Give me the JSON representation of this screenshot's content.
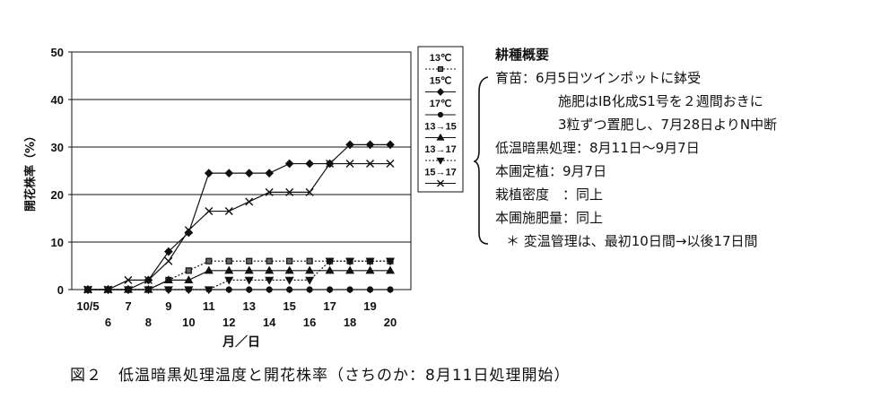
{
  "chart_data": {
    "type": "line",
    "ylabel": "開花株率（%）",
    "xlabel": "月／日",
    "ylim": [
      0,
      50
    ],
    "yticks": [
      0,
      10,
      20,
      30,
      40,
      50
    ],
    "grid": true,
    "legend_position": "right",
    "categories": [
      "10/5",
      "6",
      "7",
      "8",
      "9",
      "10",
      "11",
      "12",
      "13",
      "14",
      "15",
      "16",
      "17",
      "18",
      "19",
      "20"
    ],
    "series": [
      {
        "name": "13℃",
        "marker": "square",
        "dash": "2,2",
        "values": [
          0,
          0,
          0,
          0,
          2,
          4,
          6,
          6,
          6,
          6,
          6,
          6,
          6,
          6,
          6,
          6
        ]
      },
      {
        "name": "15℃",
        "marker": "diamond",
        "dash": "",
        "values": [
          0,
          0,
          0,
          2,
          8,
          12,
          24.5,
          24.5,
          24.5,
          24.5,
          26.5,
          26.5,
          26.5,
          30.5,
          30.5,
          30.5
        ]
      },
      {
        "name": "17℃",
        "marker": "circle",
        "dash": "",
        "values": [
          0,
          0,
          0,
          0,
          0,
          0,
          0,
          0,
          0,
          0,
          0,
          0,
          0,
          0,
          0,
          0
        ]
      },
      {
        "name": "13→15",
        "marker": "triangle",
        "dash": "",
        "values": [
          0,
          0,
          0,
          0,
          2,
          2,
          4,
          4,
          4,
          4,
          4,
          4,
          4,
          4,
          4,
          4
        ]
      },
      {
        "name": "13→17",
        "marker": "triangle-down",
        "dash": "2,2",
        "values": [
          0,
          0,
          0,
          0,
          0,
          0,
          0,
          2,
          2,
          2,
          2,
          2,
          6,
          6,
          6,
          6
        ]
      },
      {
        "name": "15→17",
        "marker": "x",
        "dash": "",
        "values": [
          0,
          0,
          2,
          2,
          6,
          12.5,
          16.5,
          16.5,
          18.5,
          20.5,
          20.5,
          20.5,
          26.5,
          26.5,
          26.5,
          26.5
        ]
      }
    ]
  },
  "notes": {
    "title": "耕種概要",
    "lines": [
      "育苗：6月5日ツインポットに鉢受",
      "施肥はIB化成S1号を２週間おきに",
      "3粒ずつ置肥し、7月28日よりN中断",
      "低温暗黒処理：8月11日～9月7日",
      "本圃定植：9月7日",
      "栽植密度　：同上",
      "本圃施肥量：同上"
    ],
    "footnote": "＊ 変温管理は、最初10日間→以後17日間"
  },
  "caption": "図２　低温暗黒処理温度と開花株率（さちのか：8月11日処理開始）"
}
